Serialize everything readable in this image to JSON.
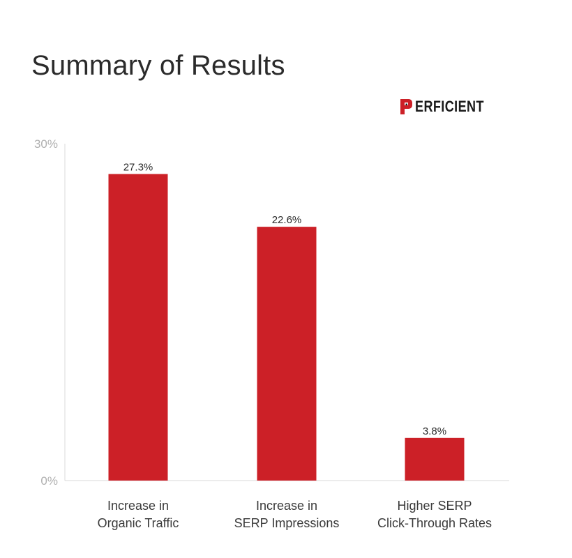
{
  "chart_data": {
    "type": "bar",
    "title": "Summary of Results",
    "categories": [
      [
        "Increase in",
        "Organic Traffic"
      ],
      [
        "Increase in",
        "SERP Impressions"
      ],
      [
        "Higher SERP",
        "Click-Through Rates"
      ]
    ],
    "values": [
      27.3,
      22.6,
      3.8
    ],
    "value_labels": [
      "27.3%",
      "22.6%",
      "3.8%"
    ],
    "ylim": [
      0,
      30
    ],
    "yticks": [
      {
        "value": 0,
        "label": "0%"
      },
      {
        "value": 30,
        "label": "30%"
      }
    ],
    "grid": false,
    "bar_color": "#cc2027",
    "xlabel": "",
    "ylabel": ""
  },
  "brand": {
    "logo_text": "ERFICIENT",
    "logo_name": "Perficient",
    "accent_color": "#cc2027"
  }
}
